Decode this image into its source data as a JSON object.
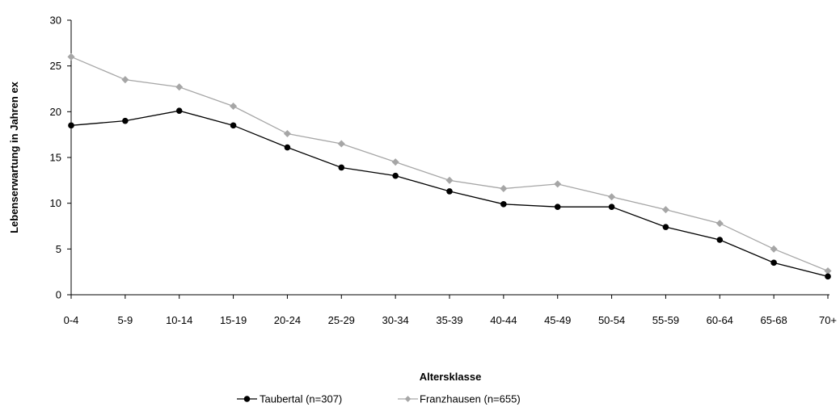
{
  "chart_data": {
    "type": "line",
    "title": "",
    "xlabel": "Altersklasse",
    "ylabel": "Lebenserwartung in Jahren ex",
    "categories": [
      "0-4",
      "5-9",
      "10-14",
      "15-19",
      "20-24",
      "25-29",
      "30-34",
      "35-39",
      "40-44",
      "45-49",
      "50-54",
      "55-59",
      "60-64",
      "65-68",
      "70+"
    ],
    "ylim": [
      0,
      30
    ],
    "yticks": [
      "0",
      "5",
      "10",
      "15",
      "20",
      "25",
      "30"
    ],
    "grid": false,
    "legend_position": "bottom",
    "series": [
      {
        "name": "Taubertal (n=307)",
        "color": "#000000",
        "marker": "circle",
        "values": [
          18.5,
          19.0,
          20.1,
          18.5,
          16.1,
          13.9,
          13.0,
          11.3,
          9.9,
          9.6,
          9.6,
          7.4,
          6.0,
          3.5,
          2.0
        ]
      },
      {
        "name": "Franzhausen (n=655)",
        "color": "#a6a6a6",
        "marker": "diamond",
        "values": [
          26.0,
          23.5,
          22.7,
          20.6,
          17.6,
          16.5,
          14.5,
          12.5,
          11.6,
          12.1,
          10.7,
          9.3,
          7.8,
          5.0,
          2.6
        ]
      }
    ]
  }
}
